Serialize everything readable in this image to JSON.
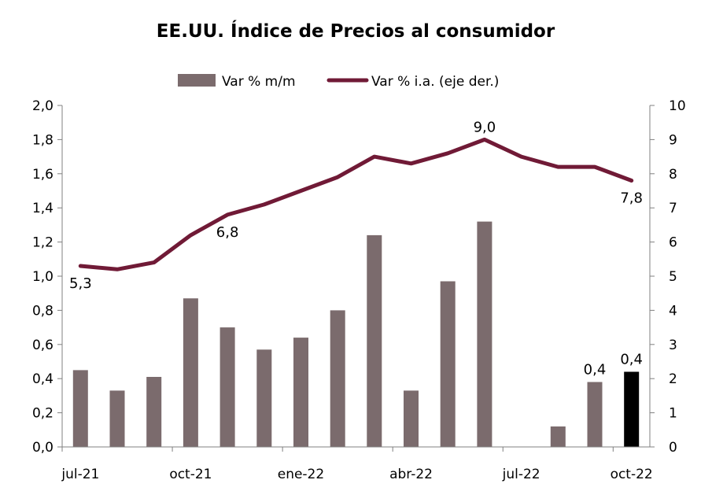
{
  "chart_data": {
    "type": "bar",
    "title": "EE.UU. Índice de Precios al consumidor",
    "legend_position": "top",
    "grid": false,
    "x": [
      "jul-21",
      "ago-21",
      "sep-21",
      "oct-21",
      "nov-21",
      "dic-21",
      "ene-22",
      "feb-22",
      "mar-22",
      "abr-22",
      "may-22",
      "jun-22",
      "jul-22",
      "ago-22",
      "sep-22",
      "oct-22"
    ],
    "x_tick_labels": [
      {
        "index": 0,
        "label": "jul-21"
      },
      {
        "index": 3,
        "label": "oct-21"
      },
      {
        "index": 6,
        "label": "ene-22"
      },
      {
        "index": 9,
        "label": "abr-22"
      },
      {
        "index": 12,
        "label": "jul-22"
      },
      {
        "index": 15,
        "label": "oct-22"
      }
    ],
    "y_left": {
      "range": [
        0,
        2.0
      ],
      "ticks": [
        "0,0",
        "0,2",
        "0,4",
        "0,6",
        "0,8",
        "1,0",
        "1,2",
        "1,4",
        "1,6",
        "1,8",
        "2,0"
      ],
      "tick_values": [
        0,
        0.2,
        0.4,
        0.6,
        0.8,
        1.0,
        1.2,
        1.4,
        1.6,
        1.8,
        2.0
      ]
    },
    "y_right": {
      "range": [
        0,
        10
      ],
      "ticks": [
        "0",
        "1",
        "2",
        "3",
        "4",
        "5",
        "6",
        "7",
        "8",
        "9",
        "10"
      ],
      "tick_values": [
        0,
        1,
        2,
        3,
        4,
        5,
        6,
        7,
        8,
        9,
        10
      ]
    },
    "series": [
      {
        "name": "Var % m/m",
        "kind": "bar",
        "axis": "left",
        "color": "#7b6b6d",
        "highlight_color": "#000000",
        "highlight_index": 15,
        "values": [
          0.45,
          0.33,
          0.41,
          0.87,
          0.7,
          0.57,
          0.64,
          0.8,
          1.24,
          0.33,
          0.97,
          1.32,
          0.0,
          0.12,
          0.38,
          0.44
        ]
      },
      {
        "name": "Var %  i.a. (eje der.)",
        "kind": "line",
        "axis": "right",
        "color": "#701a36",
        "values": [
          5.3,
          5.2,
          5.4,
          6.2,
          6.8,
          7.1,
          7.5,
          7.9,
          8.5,
          8.3,
          8.6,
          9.0,
          8.5,
          8.2,
          8.2,
          7.8
        ]
      }
    ],
    "data_labels": [
      {
        "series": 1,
        "index": 0,
        "text": "5,3",
        "side": "below"
      },
      {
        "series": 1,
        "index": 4,
        "text": "6,8",
        "side": "below"
      },
      {
        "series": 1,
        "index": 11,
        "text": "9,0",
        "side": "above"
      },
      {
        "series": 1,
        "index": 15,
        "text": "7,8",
        "side": "below"
      },
      {
        "series": 0,
        "index": 14,
        "text": "0,4",
        "side": "above"
      },
      {
        "series": 0,
        "index": 15,
        "text": "0,4",
        "side": "above"
      }
    ]
  }
}
